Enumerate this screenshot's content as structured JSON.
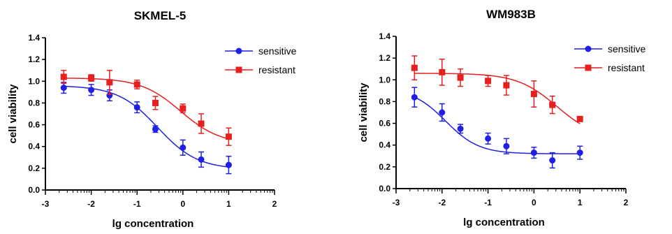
{
  "chart_data": [
    {
      "type": "scatter",
      "title": "SKMEL-5",
      "xlabel": "lg concentration",
      "ylabel": "cell viability",
      "xlim": [
        -3,
        2
      ],
      "ylim": [
        0,
        1.4
      ],
      "xticks": [
        "-3",
        "-2",
        "-1",
        "0",
        "1",
        "2"
      ],
      "yticks": [
        "0.0",
        "0.2",
        "0.4",
        "0.6",
        "0.8",
        "1.0",
        "1.2",
        "1.4"
      ],
      "legend_position": "top-right",
      "series": [
        {
          "name": "sensitive",
          "color": "#1f1fe6",
          "marker": "circle",
          "x": [
            -2.6,
            -2.0,
            -1.6,
            -1.0,
            -0.6,
            0.0,
            0.4,
            1.0
          ],
          "y": [
            0.94,
            0.92,
            0.87,
            0.76,
            0.56,
            0.39,
            0.28,
            0.23
          ],
          "error": [
            0.05,
            0.05,
            0.05,
            0.05,
            0.03,
            0.07,
            0.07,
            0.08
          ],
          "fit": {
            "top": 0.96,
            "bottom": 0.19,
            "logIC50": -0.55,
            "hill": 1.0
          }
        },
        {
          "name": "resistant",
          "color": "#e61f1f",
          "marker": "square",
          "x": [
            -2.6,
            -2.0,
            -1.6,
            -1.0,
            -0.6,
            0.0,
            0.4,
            1.0
          ],
          "y": [
            1.04,
            1.03,
            0.99,
            0.97,
            0.8,
            0.75,
            0.61,
            0.49
          ],
          "error": [
            0.06,
            0.03,
            0.11,
            0.04,
            0.06,
            0.04,
            0.09,
            0.08
          ],
          "fit": {
            "top": 1.03,
            "bottom": 0.42,
            "logIC50": -0.05,
            "hill": 1.0
          }
        }
      ]
    },
    {
      "type": "scatter",
      "title": "WM983B",
      "xlabel": "lg concentration",
      "ylabel": "cell viability",
      "xlim": [
        -3,
        2
      ],
      "ylim": [
        0,
        1.4
      ],
      "xticks": [
        "-3",
        "-2",
        "-1",
        "0",
        "1",
        "2"
      ],
      "yticks": [
        "0.0",
        "0.2",
        "0.4",
        "0.6",
        "0.8",
        "1.0",
        "1.2",
        "1.4"
      ],
      "legend_position": "top-right",
      "series": [
        {
          "name": "sensitive",
          "color": "#1f1fe6",
          "marker": "circle",
          "x": [
            -2.6,
            -2.0,
            -1.6,
            -1.0,
            -0.6,
            0.0,
            0.4,
            1.0
          ],
          "y": [
            0.84,
            0.7,
            0.55,
            0.46,
            0.39,
            0.33,
            0.26,
            0.33
          ],
          "error": [
            0.09,
            0.08,
            0.04,
            0.05,
            0.07,
            0.05,
            0.07,
            0.06
          ],
          "fit": {
            "top": 0.92,
            "bottom": 0.32,
            "logIC50": -1.92,
            "hill": 1.2
          }
        },
        {
          "name": "resistant",
          "color": "#e61f1f",
          "marker": "square",
          "x": [
            -2.6,
            -2.0,
            -1.6,
            -1.0,
            -0.6,
            0.0,
            0.4,
            1.0
          ],
          "y": [
            1.11,
            1.07,
            1.02,
            0.99,
            0.95,
            0.87,
            0.77,
            0.64
          ],
          "error": [
            0.11,
            0.12,
            0.08,
            0.05,
            0.09,
            0.12,
            0.08,
            0.02
          ],
          "fit": {
            "top": 1.06,
            "bottom": 0.45,
            "logIC50": 0.5,
            "hill": 1.0
          }
        }
      ]
    }
  ]
}
